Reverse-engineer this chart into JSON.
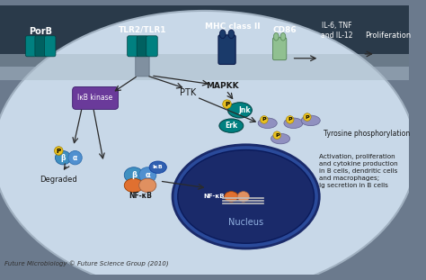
{
  "bg_outer": "#6b7a8d",
  "bg_cell": "#c8d8e8",
  "bg_dark_top": "#2a3a4a",
  "title": "",
  "footer": "Future Microbiology © Future Science Group (2010)",
  "labels": {
    "porb": "PorB",
    "tlr": "TLR2/TLR1",
    "mhc": "MHC class II",
    "cd86": "CD86",
    "il6": "IL-6, TNF\nand IL-12",
    "prolif": "Proliferation",
    "mapkk": "MAPKK",
    "jnk": "Jnk",
    "erk": "Erk",
    "ptk": "PTK",
    "ikb_kinase": "IκB kinase",
    "ikb": "IκB",
    "nfkb": "NF-κB",
    "nfkb2": "NF-κB",
    "nucleus": "Nucleus",
    "degraded": "Degraded",
    "tyrosine": "Tyrosine phosphorylation",
    "activation": "Activation, proliferation\nand cytokine production\nin B cells, dendritic cells\nand macrophages;\nIg secretion in B cells"
  },
  "colors": {
    "teal": "#008080",
    "dark_teal": "#006060",
    "blue_receptor": "#1a3a6a",
    "light_green_receptor": "#90c090",
    "purple_pill": "#6a3a9a",
    "yellow_p": "#e8c020",
    "blue_beta": "#4090c0",
    "blue_alpha": "#5090d0",
    "orange_nfkb": "#e07030",
    "peach_nfkb": "#e09060",
    "lavender": "#9090c0",
    "dark_blue_nucleus": "#1a2a6a",
    "medium_blue_nucleus": "#2a4a9a",
    "arrow_color": "#2a2a2a",
    "text_color": "#1a1a1a",
    "white": "#ffffff"
  }
}
